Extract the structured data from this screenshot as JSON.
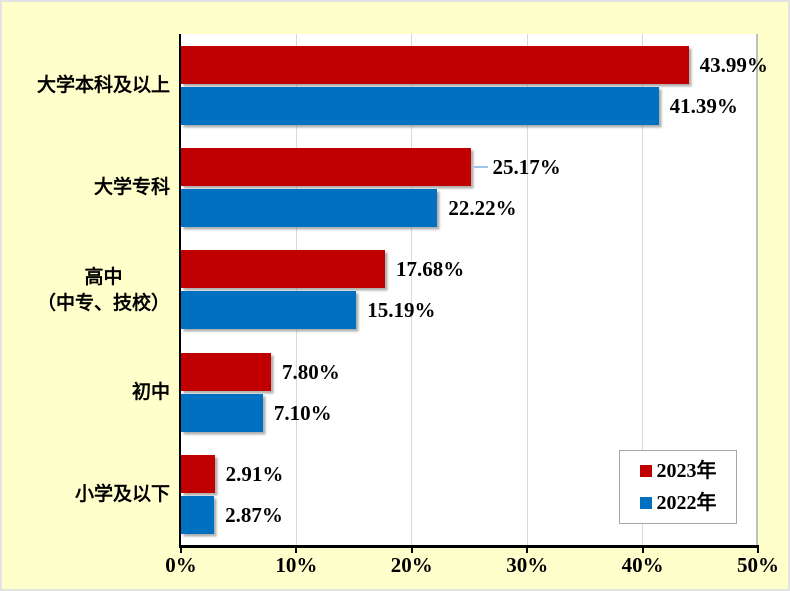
{
  "chart_data": {
    "type": "bar",
    "orientation": "horizontal",
    "categories": [
      {
        "lines": [
          "大学本科及以上"
        ]
      },
      {
        "lines": [
          "大学专科"
        ]
      },
      {
        "lines": [
          "高中",
          "（中专、技校）"
        ]
      },
      {
        "lines": [
          "初中"
        ]
      },
      {
        "lines": [
          "小学及以下"
        ]
      }
    ],
    "series": [
      {
        "name": "2023年",
        "color": "#C00000",
        "values": [
          43.99,
          25.17,
          17.68,
          7.8,
          2.91
        ],
        "labels": [
          "43.99%",
          "25.17%",
          "17.68%",
          "7.80%",
          "2.91%"
        ]
      },
      {
        "name": "2022年",
        "color": "#0070C0",
        "values": [
          41.39,
          22.22,
          15.19,
          7.1,
          2.87
        ],
        "labels": [
          "41.39%",
          "22.22%",
          "15.19%",
          "7.10%",
          "2.87%"
        ]
      }
    ],
    "xlim": [
      0,
      50
    ],
    "x_ticks": [
      {
        "value": 0,
        "label": "0%"
      },
      {
        "value": 10,
        "label": "10%"
      },
      {
        "value": 20,
        "label": "20%"
      },
      {
        "value": 30,
        "label": "30%"
      },
      {
        "value": 40,
        "label": "40%"
      },
      {
        "value": 50,
        "label": "50%"
      }
    ],
    "grid": true,
    "legend_position": "inside-bottom-right",
    "leader_line": {
      "series_index": 0,
      "category_index": 1,
      "color": "#9DC3E6"
    }
  },
  "style": {
    "page_background": "#FFFFCC",
    "plot_background": "#FFFFFF",
    "axis_color": "#000000",
    "gridline_color": "#D9D9D9",
    "legend_border_color": "#A6A6A6",
    "series_2023_color": "#C00000",
    "series_2022_color": "#0070C0"
  }
}
